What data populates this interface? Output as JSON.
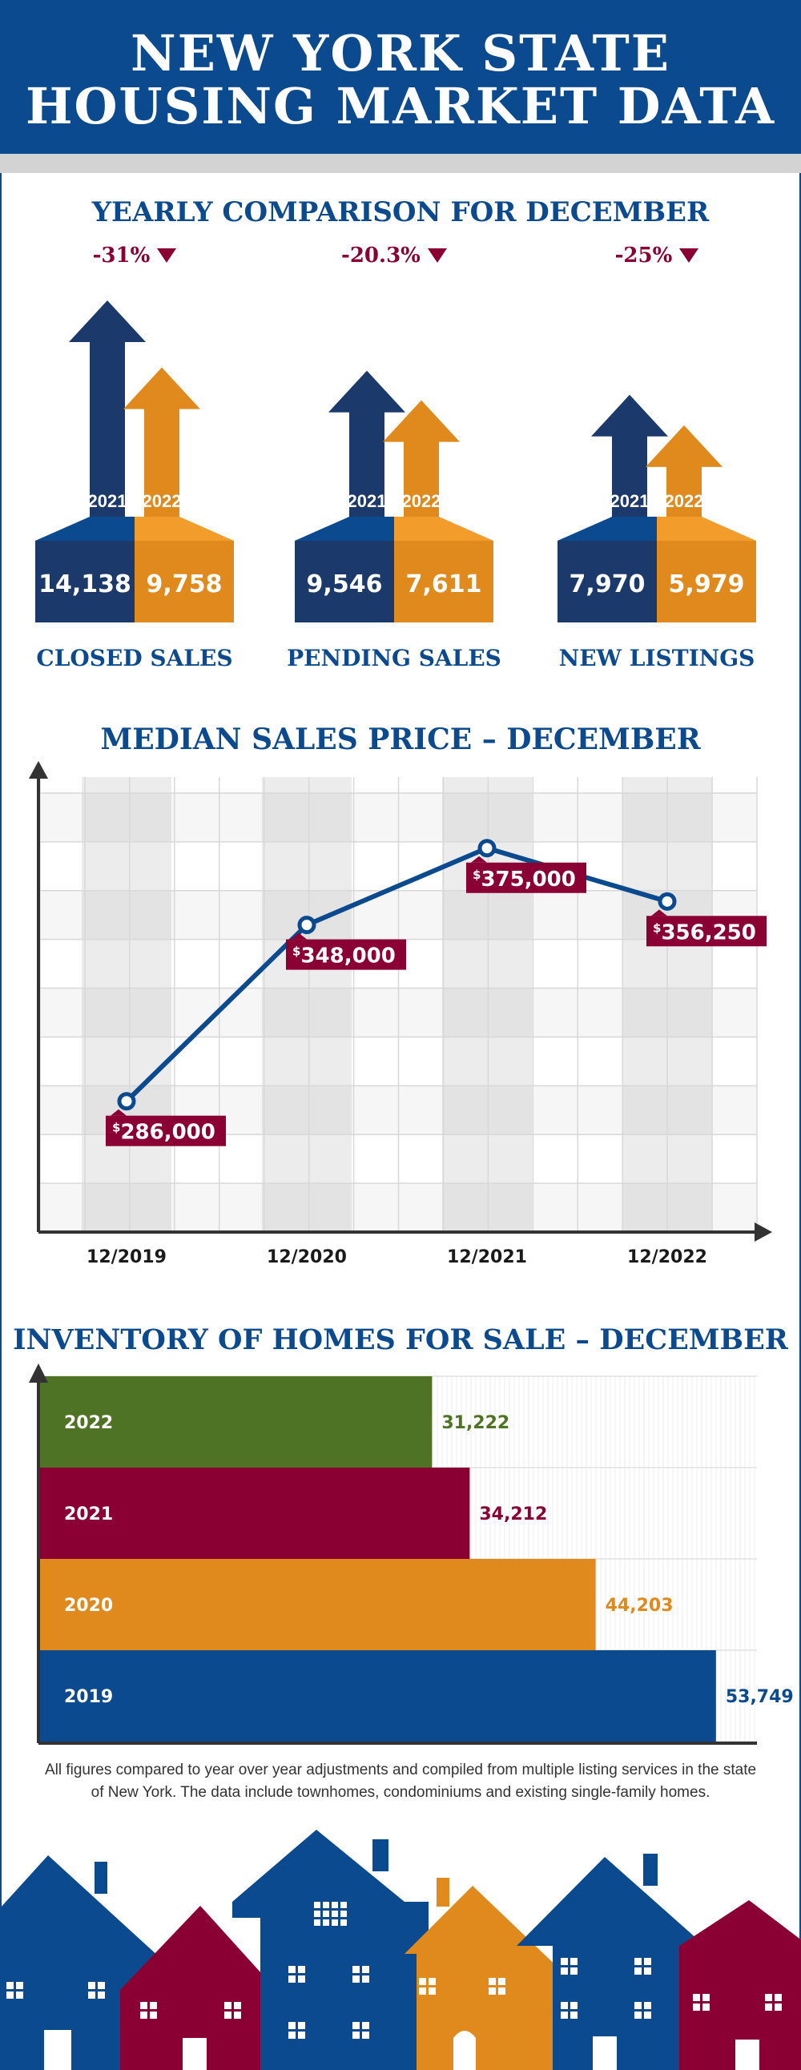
{
  "header": {
    "title_line1": "NEW YORK STATE",
    "title_line2": "HOUSING MARKET DATA"
  },
  "colors": {
    "navy": "#1b3a6b",
    "blue": "#0b4a8f",
    "orange": "#e08a1e",
    "maroon": "#8b0033",
    "green": "#4e7324"
  },
  "yearly": {
    "title": "YEARLY COMPARISON FOR DECEMBER",
    "year_a": "2021",
    "year_b": "2022",
    "metrics": [
      {
        "label": "CLOSED SALES",
        "change": "-31%",
        "value_a": "14,138",
        "value_b": "9,758",
        "num_a": 14138,
        "num_b": 9758
      },
      {
        "label": "PENDING SALES",
        "change": "-20.3%",
        "value_a": "9,546",
        "value_b": "7,611",
        "num_a": 9546,
        "num_b": 7611
      },
      {
        "label": "NEW LISTINGS",
        "change": "-25%",
        "value_a": "7,970",
        "value_b": "5,979",
        "num_a": 7970,
        "num_b": 5979
      }
    ]
  },
  "median": {
    "title": "MEDIAN SALES PRICE – DECEMBER",
    "labels": [
      "286,000",
      "348,000",
      "375,000",
      "356,250"
    ],
    "currency_symbol": "$"
  },
  "inventory": {
    "title": "INVENTORY OF HOMES FOR SALE – DECEMBER",
    "labels": [
      "31,222",
      "34,212",
      "44,203",
      "53,749"
    ]
  },
  "chart_data": [
    {
      "type": "bar",
      "title": "YEARLY COMPARISON FOR DECEMBER",
      "categories": [
        "CLOSED SALES",
        "PENDING SALES",
        "NEW LISTINGS"
      ],
      "series": [
        {
          "name": "2021",
          "values": [
            14138,
            9546,
            7970
          ]
        },
        {
          "name": "2022",
          "values": [
            9758,
            7611,
            5979
          ]
        }
      ],
      "annotations": [
        "-31%",
        "-20.3%",
        "-25%"
      ]
    },
    {
      "type": "line",
      "title": "MEDIAN SALES PRICE – DECEMBER",
      "x": [
        "12/2019",
        "12/2020",
        "12/2021",
        "12/2022"
      ],
      "values": [
        286000,
        348000,
        375000,
        356250
      ],
      "ylim": [
        240000,
        400000
      ],
      "grid": true
    },
    {
      "type": "bar",
      "title": "INVENTORY OF HOMES FOR SALE – DECEMBER",
      "orientation": "horizontal",
      "categories": [
        "2022",
        "2021",
        "2020",
        "2019"
      ],
      "values": [
        31222,
        34212,
        44203,
        53749
      ],
      "xlim": [
        0,
        57000
      ],
      "colors": [
        "#4e7324",
        "#8b0033",
        "#e08a1e",
        "#0b4a8f"
      ]
    }
  ],
  "footer": {
    "note": "All figures compared to year over year adjustments and compiled from multiple listing services in the state of New York.  The data include townhomes, condominiums and existing single-family homes."
  }
}
